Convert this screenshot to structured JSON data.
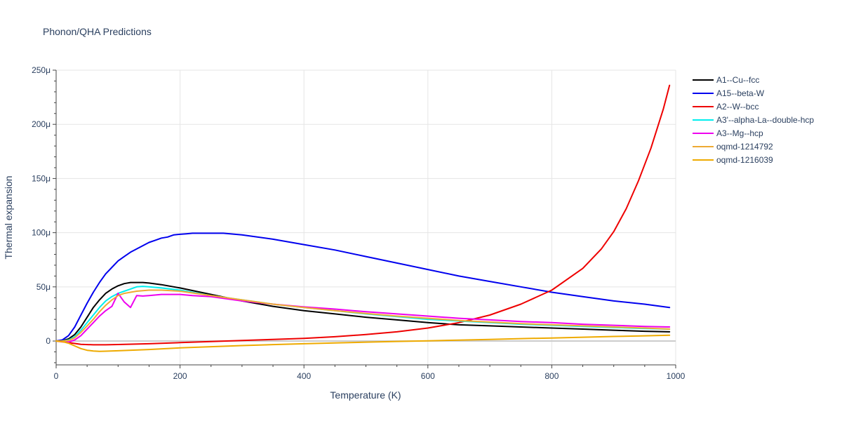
{
  "chart_data": {
    "type": "line",
    "title": "Phonon/QHA Predictions",
    "xlabel": "Temperature (K)",
    "ylabel": "Thermal expansion",
    "xlim": [
      0,
      1000
    ],
    "ylim": [
      -22,
      250
    ],
    "x_ticks": [
      {
        "value": 0,
        "label": "0"
      },
      {
        "value": 200,
        "label": "200"
      },
      {
        "value": 400,
        "label": "400"
      },
      {
        "value": 600,
        "label": "600"
      },
      {
        "value": 800,
        "label": "800"
      },
      {
        "value": 1000,
        "label": "1000"
      }
    ],
    "y_ticks": [
      {
        "value": 0,
        "label": "0"
      },
      {
        "value": 50,
        "label": "50μ"
      },
      {
        "value": 100,
        "label": "100μ"
      },
      {
        "value": 150,
        "label": "150μ"
      },
      {
        "value": 200,
        "label": "200μ"
      },
      {
        "value": 250,
        "label": "250μ"
      }
    ],
    "grid": true,
    "legend_position": "right",
    "series": [
      {
        "name": "A1--Cu--fcc",
        "color": "#000000",
        "x": [
          0,
          10,
          20,
          30,
          40,
          50,
          60,
          70,
          80,
          90,
          100,
          110,
          120,
          130,
          140,
          150,
          170,
          200,
          250,
          300,
          350,
          400,
          450,
          500,
          550,
          600,
          650,
          700,
          750,
          800,
          850,
          900,
          950,
          990
        ],
        "y": [
          0,
          0.3,
          2,
          6,
          13,
          22,
          31,
          38,
          44,
          48,
          51,
          53,
          54,
          54,
          54,
          53.5,
          52,
          49,
          43,
          37,
          32,
          28,
          25,
          22,
          19.5,
          17,
          15,
          14,
          13,
          12,
          11,
          10,
          9,
          8.5
        ]
      },
      {
        "name": "A15--beta-W",
        "color": "#0000ee",
        "x": [
          0,
          10,
          20,
          30,
          40,
          50,
          60,
          70,
          80,
          90,
          100,
          110,
          120,
          130,
          140,
          150,
          160,
          170,
          180,
          190,
          200,
          210,
          220,
          250,
          270,
          300,
          350,
          400,
          450,
          500,
          550,
          600,
          650,
          700,
          750,
          800,
          850,
          900,
          950,
          990
        ],
        "y": [
          0,
          1,
          5,
          13,
          24,
          35,
          45,
          54,
          62,
          68,
          74,
          78,
          82,
          85,
          88,
          91,
          93,
          95,
          96,
          98,
          98.5,
          99,
          99.5,
          99.5,
          99.5,
          98,
          94,
          89,
          84,
          78,
          72,
          66,
          60,
          55,
          50,
          45,
          41,
          37,
          34,
          31
        ]
      },
      {
        "name": "A2--W--bcc",
        "color": "#ee0000",
        "x": [
          0,
          20,
          40,
          60,
          80,
          100,
          150,
          200,
          250,
          300,
          350,
          400,
          450,
          500,
          550,
          600,
          650,
          700,
          750,
          800,
          850,
          880,
          900,
          920,
          940,
          960,
          980,
          990
        ],
        "y": [
          0,
          -1.5,
          -3,
          -3.5,
          -3.5,
          -3.2,
          -2.5,
          -1.5,
          -0.5,
          0.5,
          1.5,
          2.5,
          4,
          6,
          8.5,
          12,
          17,
          24,
          34,
          47,
          67,
          85,
          101,
          122,
          148,
          178,
          214,
          236
        ]
      },
      {
        "name": "A3'--alpha-La--double-hcp",
        "color": "#00eeee",
        "x": [
          0,
          10,
          20,
          30,
          40,
          50,
          60,
          70,
          80,
          90,
          100,
          110,
          120,
          130,
          140,
          150,
          170,
          200,
          250,
          300,
          350,
          400,
          450,
          500,
          550,
          600,
          650,
          700,
          750,
          800,
          850,
          900,
          950,
          990
        ],
        "y": [
          0,
          0,
          1,
          4,
          10,
          17,
          24,
          31,
          37,
          41,
          44,
          46,
          48,
          50,
          50.5,
          50,
          49,
          47,
          42,
          38,
          34,
          31,
          28,
          25,
          22.5,
          20,
          18.5,
          17,
          15.5,
          14.5,
          13.5,
          12.5,
          11.5,
          11
        ]
      },
      {
        "name": "A3--Mg--hcp",
        "color": "#ee00ee",
        "x": [
          0,
          10,
          20,
          30,
          40,
          50,
          60,
          70,
          80,
          90,
          100,
          110,
          120,
          130,
          140,
          150,
          170,
          200,
          220,
          250,
          300,
          350,
          400,
          450,
          500,
          550,
          600,
          650,
          700,
          750,
          800,
          850,
          900,
          950,
          990
        ],
        "y": [
          0,
          0,
          -1,
          1,
          5,
          11,
          17,
          23,
          28,
          32,
          44,
          36,
          31,
          42,
          41.5,
          42,
          43,
          43,
          42,
          41,
          37,
          34,
          31.5,
          29.5,
          27,
          25,
          23,
          21,
          19.5,
          18,
          17,
          15.5,
          14.5,
          13.5,
          13
        ]
      },
      {
        "name": "oqmd-1214792",
        "color": "#eeaa33",
        "x": [
          0,
          10,
          20,
          30,
          40,
          50,
          60,
          70,
          80,
          90,
          100,
          110,
          120,
          130,
          140,
          150,
          160,
          170,
          200,
          250,
          300,
          350,
          400,
          450,
          500,
          550,
          600,
          650,
          700,
          750,
          800,
          850,
          900,
          950,
          990
        ],
        "y": [
          0,
          0,
          0.5,
          3,
          8,
          14,
          20,
          27,
          33,
          38,
          42,
          44,
          45,
          46,
          46.5,
          47,
          47,
          47,
          46,
          42,
          38,
          34,
          31,
          28,
          25.5,
          23,
          21,
          19,
          17.5,
          16,
          15,
          14,
          13,
          12,
          11
        ]
      },
      {
        "name": "oqmd-1216039",
        "color": "#eeaa00",
        "x": [
          0,
          10,
          20,
          30,
          40,
          50,
          60,
          70,
          80,
          100,
          150,
          200,
          250,
          300,
          350,
          400,
          450,
          500,
          550,
          600,
          650,
          700,
          750,
          800,
          850,
          900,
          950,
          990
        ],
        "y": [
          0,
          -0.5,
          -2,
          -4.5,
          -7,
          -8.5,
          -9.2,
          -9.5,
          -9.4,
          -9,
          -7.8,
          -6.3,
          -5.2,
          -4.2,
          -3.3,
          -2.5,
          -1.8,
          -1,
          -0.4,
          0.2,
          0.8,
          1.5,
          2.2,
          2.8,
          3.5,
          4.2,
          4.8,
          5.3
        ]
      }
    ]
  }
}
